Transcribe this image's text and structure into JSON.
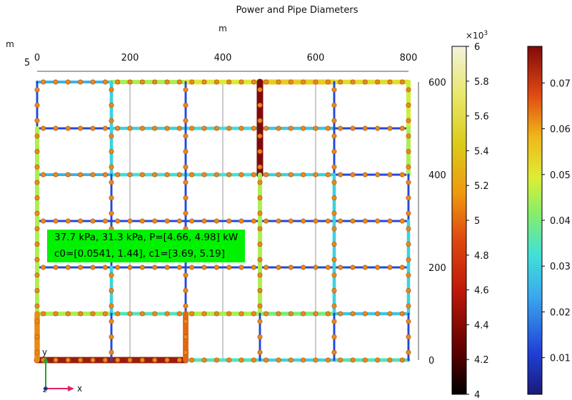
{
  "chart_data": {
    "type": "network",
    "title": "Power and Pipe Diameters",
    "x_axis": {
      "unit": "m",
      "range": [
        0,
        800
      ],
      "ticks": [
        "0",
        "200",
        "400",
        "600",
        "800"
      ]
    },
    "y_axis": {
      "unit": "m",
      "range": [
        0,
        600
      ],
      "ticks": [
        "0",
        "200",
        "400",
        "600"
      ]
    },
    "corner_scale_label": "5",
    "grid_nodes": {
      "x": [
        0,
        160,
        320,
        480,
        640,
        800
      ],
      "y": [
        0,
        100,
        200,
        300,
        400,
        500,
        600
      ]
    },
    "pipes_horizontal": [
      {
        "y": 600,
        "segments": [
          [
            0,
            160,
            0.025
          ],
          [
            160,
            320,
            0.045
          ],
          [
            320,
            480,
            0.05
          ],
          [
            480,
            640,
            0.055
          ],
          [
            640,
            800,
            0.052
          ]
        ]
      },
      {
        "y": 500,
        "segments": [
          [
            0,
            160,
            0.012
          ],
          [
            160,
            320,
            0.03
          ],
          [
            320,
            480,
            0.032
          ],
          [
            480,
            640,
            0.028
          ],
          [
            640,
            800,
            0.012
          ]
        ]
      },
      {
        "y": 400,
        "segments": [
          [
            0,
            160,
            0.025
          ],
          [
            160,
            320,
            0.032
          ],
          [
            320,
            480,
            0.033
          ],
          [
            480,
            640,
            0.03
          ],
          [
            640,
            800,
            0.012
          ]
        ]
      },
      {
        "y": 300,
        "segments": [
          [
            0,
            160,
            0.012
          ],
          [
            160,
            320,
            0.012
          ],
          [
            320,
            480,
            0.012
          ],
          [
            480,
            640,
            0.012
          ],
          [
            640,
            800,
            0.012
          ]
        ]
      },
      {
        "y": 200,
        "segments": [
          [
            0,
            160,
            0.012
          ],
          [
            160,
            320,
            0.012
          ],
          [
            320,
            480,
            0.012
          ],
          [
            480,
            640,
            0.012
          ],
          [
            640,
            800,
            0.012
          ]
        ]
      },
      {
        "y": 100,
        "segments": [
          [
            0,
            160,
            0.045
          ],
          [
            160,
            320,
            0.035
          ],
          [
            320,
            480,
            0.045
          ],
          [
            480,
            640,
            0.04
          ],
          [
            640,
            800,
            0.028
          ]
        ]
      },
      {
        "y": 0,
        "segments": [
          [
            0,
            160,
            0.075
          ],
          [
            160,
            320,
            0.075
          ],
          [
            320,
            480,
            0.035
          ],
          [
            480,
            640,
            0.03
          ],
          [
            640,
            800,
            0.035
          ]
        ]
      }
    ],
    "pipes_vertical": [
      {
        "x": 0,
        "segments": [
          [
            500,
            600,
            0.012
          ],
          [
            400,
            500,
            0.045
          ],
          [
            300,
            400,
            0.045
          ],
          [
            200,
            300,
            0.045
          ],
          [
            100,
            200,
            0.045
          ],
          [
            0,
            100,
            0.062
          ]
        ]
      },
      {
        "x": 160,
        "segments": [
          [
            500,
            600,
            0.03
          ],
          [
            400,
            500,
            0.03
          ],
          [
            300,
            400,
            0.012
          ],
          [
            200,
            300,
            0.012
          ],
          [
            100,
            200,
            0.03
          ],
          [
            0,
            100,
            0.012
          ]
        ]
      },
      {
        "x": 320,
        "segments": [
          [
            500,
            600,
            0.012
          ],
          [
            400,
            500,
            0.012
          ],
          [
            300,
            400,
            0.012
          ],
          [
            200,
            300,
            0.012
          ],
          [
            100,
            200,
            0.012
          ],
          [
            0,
            100,
            0.065
          ]
        ]
      },
      {
        "x": 480,
        "segments": [
          [
            500,
            600,
            0.078
          ],
          [
            400,
            500,
            0.078
          ],
          [
            300,
            400,
            0.045
          ],
          [
            200,
            300,
            0.045
          ],
          [
            100,
            200,
            0.045
          ],
          [
            0,
            100,
            0.012
          ]
        ]
      },
      {
        "x": 640,
        "segments": [
          [
            500,
            600,
            0.012
          ],
          [
            400,
            500,
            0.012
          ],
          [
            300,
            400,
            0.03
          ],
          [
            200,
            300,
            0.03
          ],
          [
            100,
            200,
            0.03
          ],
          [
            0,
            100,
            0.012
          ]
        ]
      },
      {
        "x": 800,
        "segments": [
          [
            500,
            600,
            0.048
          ],
          [
            400,
            500,
            0.045
          ],
          [
            300,
            400,
            0.012
          ],
          [
            200,
            300,
            0.03
          ],
          [
            100,
            200,
            0.03
          ],
          [
            0,
            100,
            0.012
          ]
        ]
      }
    ],
    "annotation": {
      "line1": "37.7 kPa, 31.3 kPa, P=[4.66, 4.98] kW",
      "line2": "c0=[0.0541, 1.44], c1=[3.69, 5.19]"
    },
    "colorbar_power": {
      "multiplier": "×10",
      "exponent": "3",
      "range": [
        4,
        6
      ],
      "ticks": [
        "4",
        "4.2",
        "4.4",
        "4.6",
        "4.8",
        "5",
        "5.2",
        "5.4",
        "5.6",
        "5.8",
        "6"
      ],
      "colormap": "heat"
    },
    "colorbar_diameter": {
      "range": [
        0.002,
        0.078
      ],
      "ticks": [
        "0.01",
        "0.02",
        "0.03",
        "0.04",
        "0.05",
        "0.06",
        "0.07"
      ],
      "colormap": "rainbow"
    },
    "axis_triad": {
      "x_label": "x",
      "y_label": "y",
      "z_label": "z"
    },
    "colors": {
      "axis_x": "#e0245e",
      "axis_y": "#2ca02c",
      "callout_bg": "#00f200",
      "node": "#e8891e"
    }
  }
}
